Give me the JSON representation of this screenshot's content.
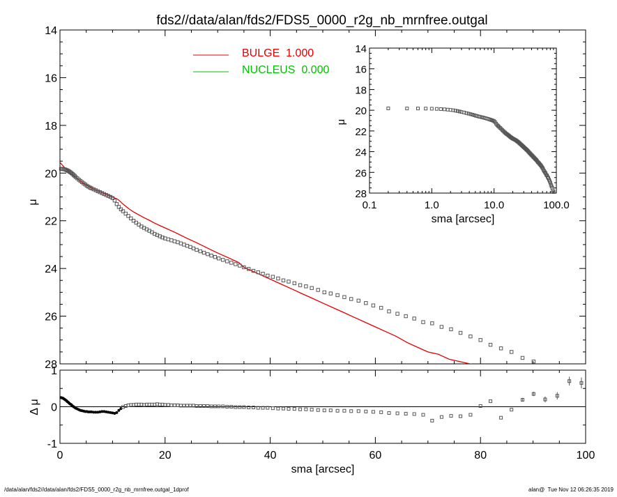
{
  "title": "fds2//data/alan/fds2/FDS5_0000_r2g_nb_mrnfree.outgal",
  "footer_left": "/data/alan/fds2//data/alan/fds2/FDS5_0000_r2g_nb_mrnfree.outgal_1dprof",
  "footer_right": "alan@  Tue Nov 12 06:26:35 2019",
  "colors": {
    "data": "#555555",
    "bulge": "#e00000",
    "nucleus": "#00c000",
    "axis": "#000000"
  },
  "chart_data": [
    {
      "id": "main",
      "type": "scatter",
      "ylabel": "μ",
      "xlim": [
        0,
        100
      ],
      "ylim": [
        28,
        14
      ],
      "y_inverted": true,
      "yticks": [
        "14",
        "16",
        "18",
        "20",
        "22",
        "24",
        "26",
        "28"
      ],
      "legend": {
        "placement": "top-center",
        "entries": [
          {
            "name": "BULGE  1.000",
            "color": "#e00000"
          },
          {
            "name": "NUCLEUS  0.000",
            "color": "#00c000"
          }
        ]
      },
      "data_points": {
        "x": [
          0.2,
          0.4,
          0.6,
          0.8,
          1.0,
          1.2,
          1.4,
          1.6,
          1.8,
          2.0,
          2.2,
          2.4,
          2.6,
          2.8,
          3.0,
          3.3,
          3.6,
          3.9,
          4.2,
          4.5,
          4.8,
          5.1,
          5.4,
          5.7,
          6.0,
          6.4,
          6.8,
          7.2,
          7.6,
          8.0,
          8.4,
          8.8,
          9.2,
          9.6,
          10.0,
          10.4,
          10.8,
          11.2,
          11.6,
          12.0,
          12.5,
          13.0,
          13.5,
          14.0,
          14.5,
          15.0,
          15.5,
          16.0,
          16.5,
          17.0,
          17.5,
          18.0,
          18.5,
          19.0,
          19.5,
          20.0,
          20.6,
          21.2,
          21.8,
          22.4,
          23.0,
          23.6,
          24.2,
          24.8,
          25.4,
          26.0,
          26.7,
          27.4,
          28.1,
          28.8,
          29.5,
          30.2,
          31.0,
          31.8,
          32.6,
          33.4,
          34.2,
          35.0,
          35.9,
          36.8,
          37.7,
          38.6,
          39.5,
          40.5,
          41.5,
          42.5,
          43.5,
          44.6,
          45.7,
          46.8,
          47.9,
          49.1,
          50.3,
          51.5,
          52.8,
          54.1,
          55.4,
          56.8,
          58.2,
          59.6,
          61.1,
          62.6,
          64.2,
          65.8,
          67.4,
          69.1,
          70.8,
          72.6,
          74.4,
          76.2,
          78.1,
          80.0,
          81.9,
          83.9,
          85.9,
          88.0,
          90.1,
          92.3,
          94.6,
          96.9,
          99.2
        ],
        "y": [
          19.82,
          19.83,
          19.83,
          19.84,
          19.85,
          19.87,
          19.89,
          19.91,
          19.94,
          19.97,
          20.0,
          20.04,
          20.08,
          20.12,
          20.17,
          20.22,
          20.28,
          20.33,
          20.38,
          20.43,
          20.48,
          20.53,
          20.57,
          20.61,
          20.64,
          20.68,
          20.72,
          20.76,
          20.8,
          20.84,
          20.88,
          20.92,
          20.96,
          21.0,
          21.05,
          21.15,
          21.3,
          21.42,
          21.52,
          21.6,
          21.7,
          21.8,
          21.9,
          22.0,
          22.08,
          22.16,
          22.24,
          22.3,
          22.36,
          22.42,
          22.48,
          22.55,
          22.6,
          22.65,
          22.7,
          22.74,
          22.78,
          22.82,
          22.86,
          22.9,
          22.95,
          23.0,
          23.05,
          23.1,
          23.16,
          23.22,
          23.28,
          23.34,
          23.4,
          23.46,
          23.52,
          23.58,
          23.64,
          23.7,
          23.76,
          23.82,
          23.88,
          23.95,
          24.02,
          24.1,
          24.16,
          24.22,
          24.3,
          24.35,
          24.42,
          24.5,
          24.55,
          24.62,
          24.7,
          24.75,
          24.82,
          24.9,
          25.0,
          25.05,
          25.12,
          25.2,
          25.28,
          25.35,
          25.45,
          25.55,
          25.65,
          25.8,
          25.9,
          26.0,
          26.1,
          26.25,
          26.3,
          26.45,
          26.55,
          26.7,
          26.85,
          27.0,
          27.2,
          27.35,
          27.5,
          27.75,
          27.9,
          28.1,
          28.3,
          28.55,
          28.75
        ],
        "dmu": [
          0.25,
          0.24,
          0.23,
          0.21,
          0.19,
          0.17,
          0.14,
          0.12,
          0.09,
          0.07,
          0.05,
          0.02,
          0.0,
          -0.02,
          -0.04,
          -0.06,
          -0.08,
          -0.1,
          -0.11,
          -0.12,
          -0.13,
          -0.13,
          -0.14,
          -0.14,
          -0.14,
          -0.15,
          -0.15,
          -0.15,
          -0.14,
          -0.13,
          -0.13,
          -0.14,
          -0.15,
          -0.16,
          -0.17,
          -0.18,
          -0.16,
          -0.1,
          -0.05,
          -0.01,
          0.02,
          0.04,
          0.05,
          0.05,
          0.06,
          0.06,
          0.06,
          0.05,
          0.06,
          0.06,
          0.06,
          0.06,
          0.07,
          0.06,
          0.06,
          0.05,
          0.05,
          0.04,
          0.04,
          0.04,
          0.03,
          0.03,
          0.03,
          0.03,
          0.03,
          0.02,
          0.02,
          0.02,
          0.02,
          0.01,
          0.01,
          0.01,
          0.01,
          0.0,
          0.0,
          -0.01,
          -0.01,
          -0.01,
          -0.02,
          -0.02,
          -0.03,
          -0.03,
          -0.03,
          -0.04,
          -0.05,
          -0.05,
          -0.06,
          -0.06,
          -0.07,
          -0.07,
          -0.08,
          -0.09,
          -0.1,
          -0.1,
          -0.11,
          -0.11,
          -0.12,
          -0.12,
          -0.13,
          -0.14,
          -0.15,
          -0.17,
          -0.18,
          -0.19,
          -0.2,
          -0.22,
          -0.38,
          -0.28,
          -0.25,
          -0.26,
          -0.22,
          0.02,
          0.15,
          -0.3,
          -0.08,
          0.19,
          0.35,
          0.2,
          0.3,
          0.7,
          0.65,
          1.0
        ],
        "dmu_err": [
          0,
          0,
          0,
          0,
          0,
          0,
          0,
          0,
          0,
          0,
          0,
          0,
          0,
          0,
          0,
          0,
          0,
          0,
          0,
          0,
          0,
          0,
          0,
          0,
          0,
          0,
          0,
          0,
          0,
          0,
          0,
          0,
          0,
          0,
          0,
          0,
          0,
          0,
          0,
          0,
          0,
          0,
          0,
          0,
          0,
          0,
          0,
          0,
          0,
          0,
          0,
          0,
          0,
          0,
          0,
          0,
          0,
          0,
          0,
          0,
          0,
          0,
          0,
          0,
          0,
          0,
          0,
          0,
          0,
          0,
          0,
          0,
          0,
          0,
          0,
          0,
          0,
          0,
          0,
          0,
          0,
          0,
          0,
          0,
          0,
          0,
          0,
          0,
          0,
          0,
          0,
          0,
          0,
          0,
          0,
          0,
          0,
          0,
          0,
          0,
          0,
          0,
          0,
          0,
          0,
          0,
          0,
          0,
          0,
          0,
          0,
          0,
          0,
          0,
          0,
          0.05,
          0.06,
          0.08,
          0.1,
          0.12,
          0.15,
          0.3
        ]
      },
      "bulge_model": {
        "x": [
          0,
          1,
          2,
          3,
          4,
          5,
          6,
          7,
          8,
          9,
          10,
          11,
          12,
          13,
          14,
          15,
          16,
          17,
          18,
          19,
          20,
          22,
          24,
          26,
          28,
          30,
          32,
          34,
          35,
          36,
          38,
          40,
          42,
          44,
          46,
          48,
          50,
          52,
          54,
          56,
          58,
          60,
          62,
          64,
          66,
          68,
          70,
          72,
          74,
          76,
          78,
          80,
          82,
          84,
          86,
          88
        ],
        "y": [
          19.55,
          19.8,
          20.0,
          20.18,
          20.37,
          20.5,
          20.63,
          20.73,
          20.82,
          20.91,
          21.0,
          21.1,
          21.3,
          21.48,
          21.63,
          21.75,
          21.87,
          21.98,
          22.1,
          22.2,
          22.3,
          22.5,
          22.72,
          22.92,
          23.14,
          23.35,
          23.55,
          23.75,
          23.95,
          24.05,
          24.25,
          24.45,
          24.65,
          24.85,
          25.05,
          25.25,
          25.45,
          25.65,
          25.85,
          26.05,
          26.25,
          26.45,
          26.65,
          26.85,
          27.1,
          27.3,
          27.5,
          27.6,
          27.8,
          27.9,
          28.0,
          28.1,
          28.3,
          28.4,
          28.45,
          28.5
        ]
      }
    },
    {
      "id": "inset",
      "type": "scatter",
      "xlabel": "sma [arcsec]",
      "ylabel": "μ",
      "xscale": "log",
      "xlim": [
        0.1,
        100
      ],
      "ylim": [
        28,
        14
      ],
      "xticks": [
        "0.1",
        "1.0",
        "10.0",
        "100.0"
      ],
      "yticks": [
        "14",
        "16",
        "18",
        "20",
        "22",
        "24",
        "26",
        "28"
      ]
    },
    {
      "id": "residual",
      "type": "scatter",
      "xlabel": "sma [arcsec]",
      "ylabel": "Δ μ",
      "xlim": [
        0,
        100
      ],
      "ylim": [
        -1,
        1
      ],
      "xticks": [
        "0",
        "20",
        "40",
        "60",
        "80",
        "100"
      ],
      "yticks": [
        "-1",
        "0",
        "1"
      ]
    }
  ]
}
